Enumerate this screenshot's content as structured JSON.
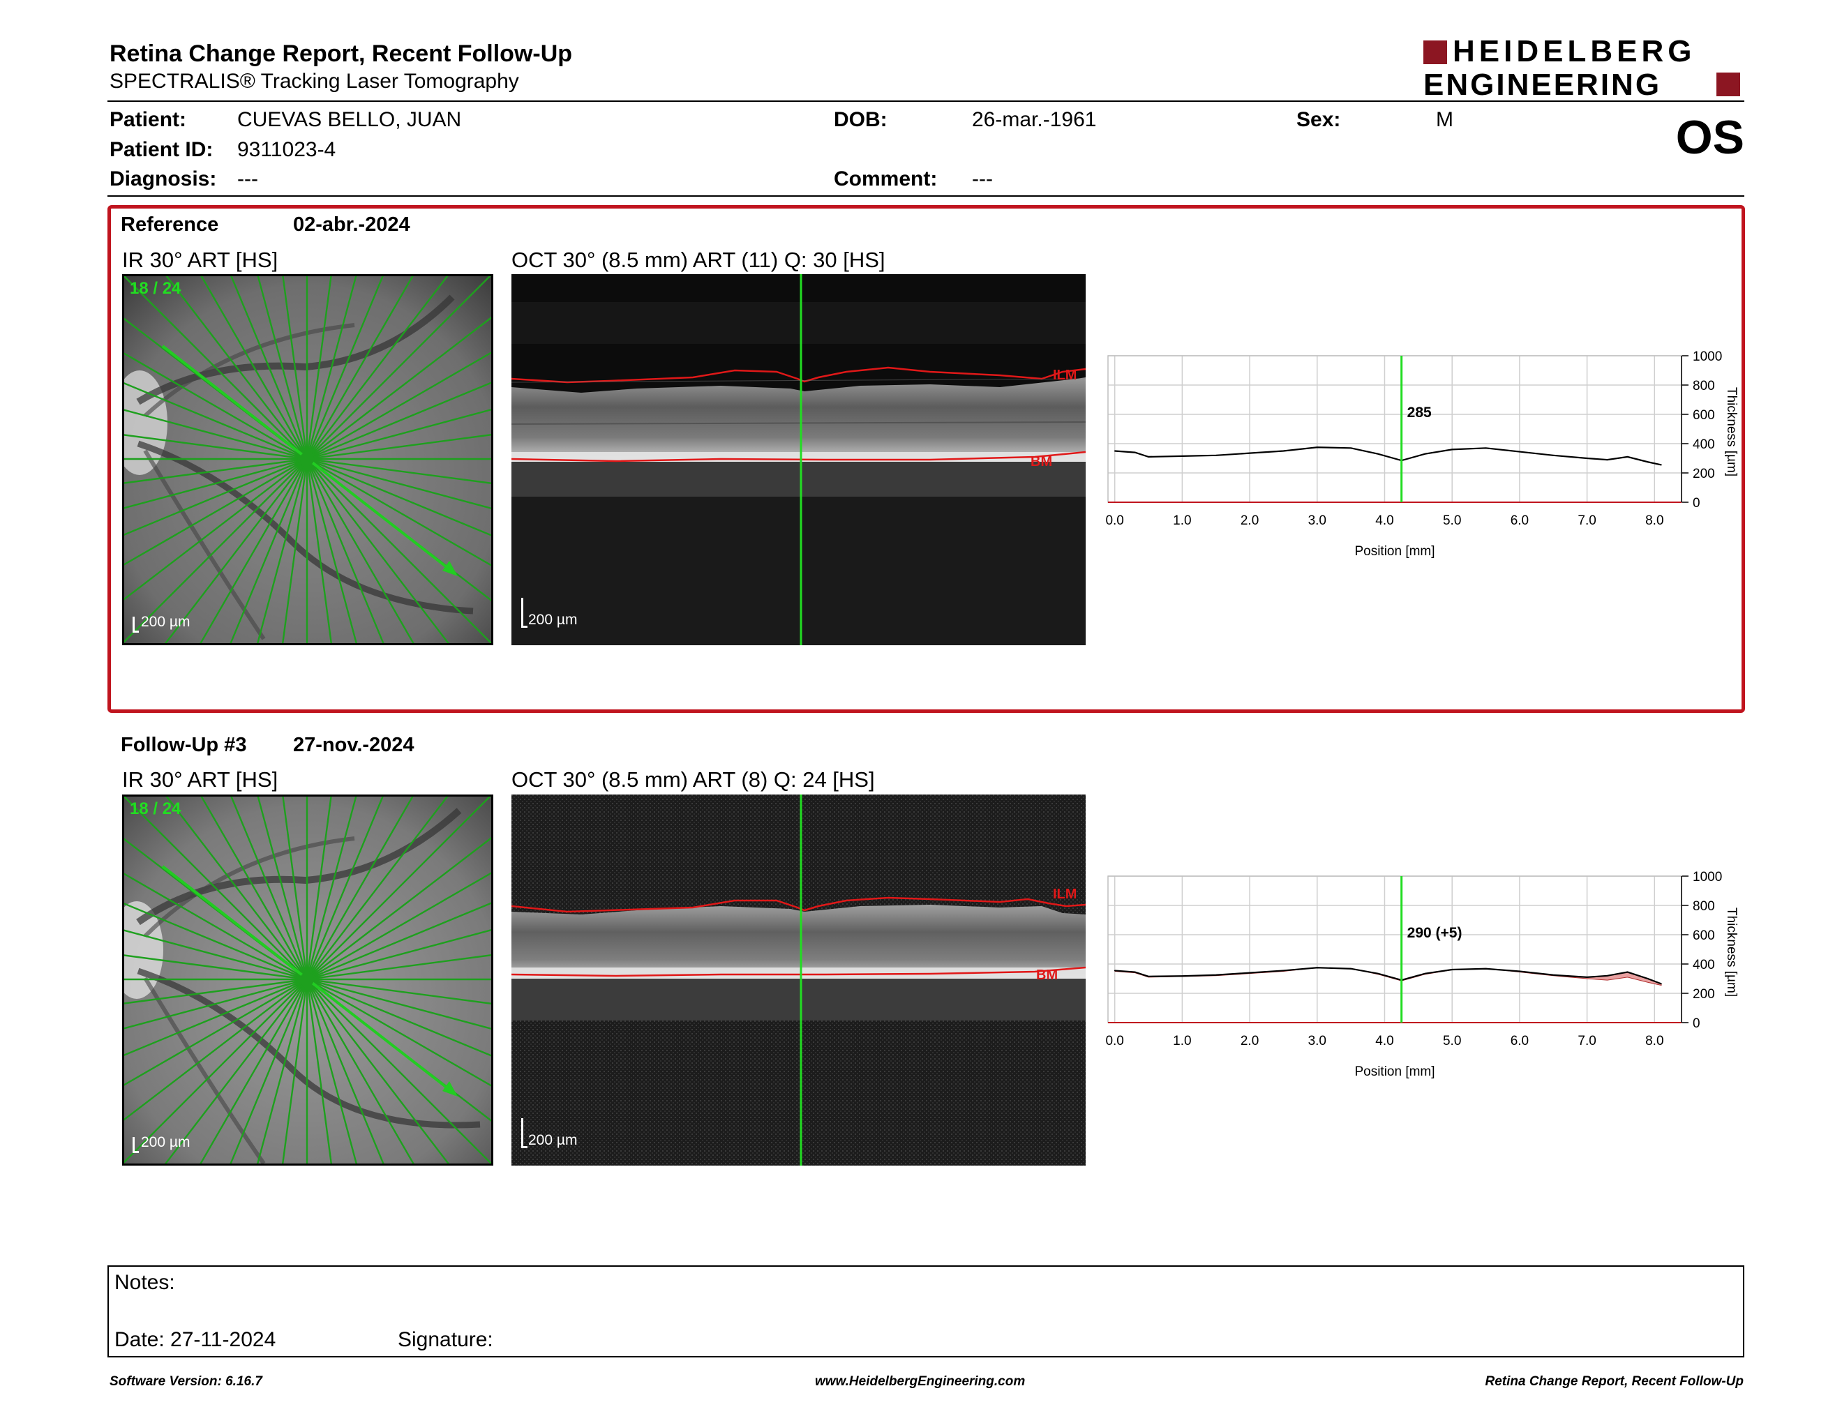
{
  "header": {
    "title": "Retina Change Report, Recent Follow-Up",
    "subtitle": "SPECTRALIS® Tracking Laser Tomography",
    "logo_line1": "HEIDELBERG",
    "logo_line2": "ENGINEERING",
    "eye": "OS"
  },
  "patient": {
    "patient_label": "Patient:",
    "patient_value": "CUEVAS BELLO, JUAN",
    "id_label": "Patient ID:",
    "id_value": "9311023-4",
    "diagnosis_label": "Diagnosis:",
    "diagnosis_value": "---",
    "dob_label": "DOB:",
    "dob_value": "26-mar.-1961",
    "comment_label": "Comment:",
    "comment_value": "---",
    "sex_label": "Sex:",
    "sex_value": "M"
  },
  "reference": {
    "label": "Reference",
    "date": "02-abr.-2024",
    "ir_title": "IR 30° ART [HS]",
    "scan_counter": "18 / 24",
    "ir_scale": "200 µm",
    "oct_title": "OCT 30° (8.5 mm) ART (11) Q: 30 [HS]",
    "oct_scale": "200 µm",
    "ilm_label": "ILM",
    "bm_label": "BM"
  },
  "followup": {
    "label": "Follow-Up #3",
    "date": "27-nov.-2024",
    "ir_title": "IR 30° ART [HS]",
    "scan_counter": "18 / 24",
    "ir_scale": "200 µm",
    "oct_title": "OCT 30° (8.5 mm) ART (8) Q: 24 [HS]",
    "oct_scale": "200 µm",
    "ilm_label": "ILM",
    "bm_label": "BM"
  },
  "chart_data": [
    {
      "type": "line",
      "xlabel": "Position [mm]",
      "ylabel": "Thickness [µm]",
      "xlim": [
        -0.1,
        8.4
      ],
      "ylim": [
        0,
        1000
      ],
      "x_ticks": [
        "0.0",
        "1.0",
        "2.0",
        "3.0",
        "4.0",
        "5.0",
        "6.0",
        "7.0",
        "8.0"
      ],
      "y_ticks": [
        "0",
        "200",
        "400",
        "600",
        "800",
        "1000"
      ],
      "grid": true,
      "cursor_x": 4.25,
      "cursor_label": "285",
      "series": [
        {
          "x": [
            0.0,
            0.3,
            0.5,
            1.0,
            1.5,
            2.0,
            2.5,
            3.0,
            3.5,
            3.9,
            4.25,
            4.6,
            5.0,
            5.5,
            6.0,
            6.5,
            7.0,
            7.3,
            7.6,
            7.9,
            8.1
          ],
          "y": [
            350,
            340,
            310,
            315,
            320,
            335,
            350,
            375,
            370,
            330,
            285,
            330,
            360,
            370,
            345,
            320,
            300,
            290,
            310,
            275,
            255
          ]
        }
      ]
    },
    {
      "type": "line",
      "xlabel": "Position [mm]",
      "ylabel": "Thickness [µm]",
      "xlim": [
        -0.1,
        8.4
      ],
      "ylim": [
        0,
        1000
      ],
      "x_ticks": [
        "0.0",
        "1.0",
        "2.0",
        "3.0",
        "4.0",
        "5.0",
        "6.0",
        "7.0",
        "8.0"
      ],
      "y_ticks": [
        "0",
        "200",
        "400",
        "600",
        "800",
        "1000"
      ],
      "grid": true,
      "cursor_x": 4.25,
      "cursor_label": "290 (+5)",
      "series": [
        {
          "x": [
            0.0,
            0.3,
            0.5,
            1.0,
            1.5,
            2.0,
            2.5,
            3.0,
            3.5,
            3.9,
            4.25,
            4.6,
            5.0,
            5.5,
            6.0,
            6.5,
            7.0,
            7.3,
            7.6,
            7.9,
            8.1
          ],
          "y": [
            355,
            345,
            315,
            318,
            325,
            340,
            355,
            375,
            368,
            335,
            290,
            335,
            362,
            368,
            350,
            325,
            310,
            320,
            345,
            300,
            265
          ]
        }
      ],
      "change_fill_color": "#e8a0a0"
    }
  ],
  "notes": {
    "notes_label": "Notes:",
    "date_label": "Date: 27-11-2024",
    "signature_label": "Signature:"
  },
  "footer": {
    "left": "Software Version: 6.16.7",
    "center": "www.HeidelbergEngineering.com",
    "right": "Retina Change Report, Recent Follow-Up"
  },
  "colors": {
    "brand_red": "#8c1622",
    "section_border": "#c0141e",
    "scan_green": "#1ea01e",
    "cursor_green": "#22dd22",
    "segmentation_red": "#e01818"
  }
}
